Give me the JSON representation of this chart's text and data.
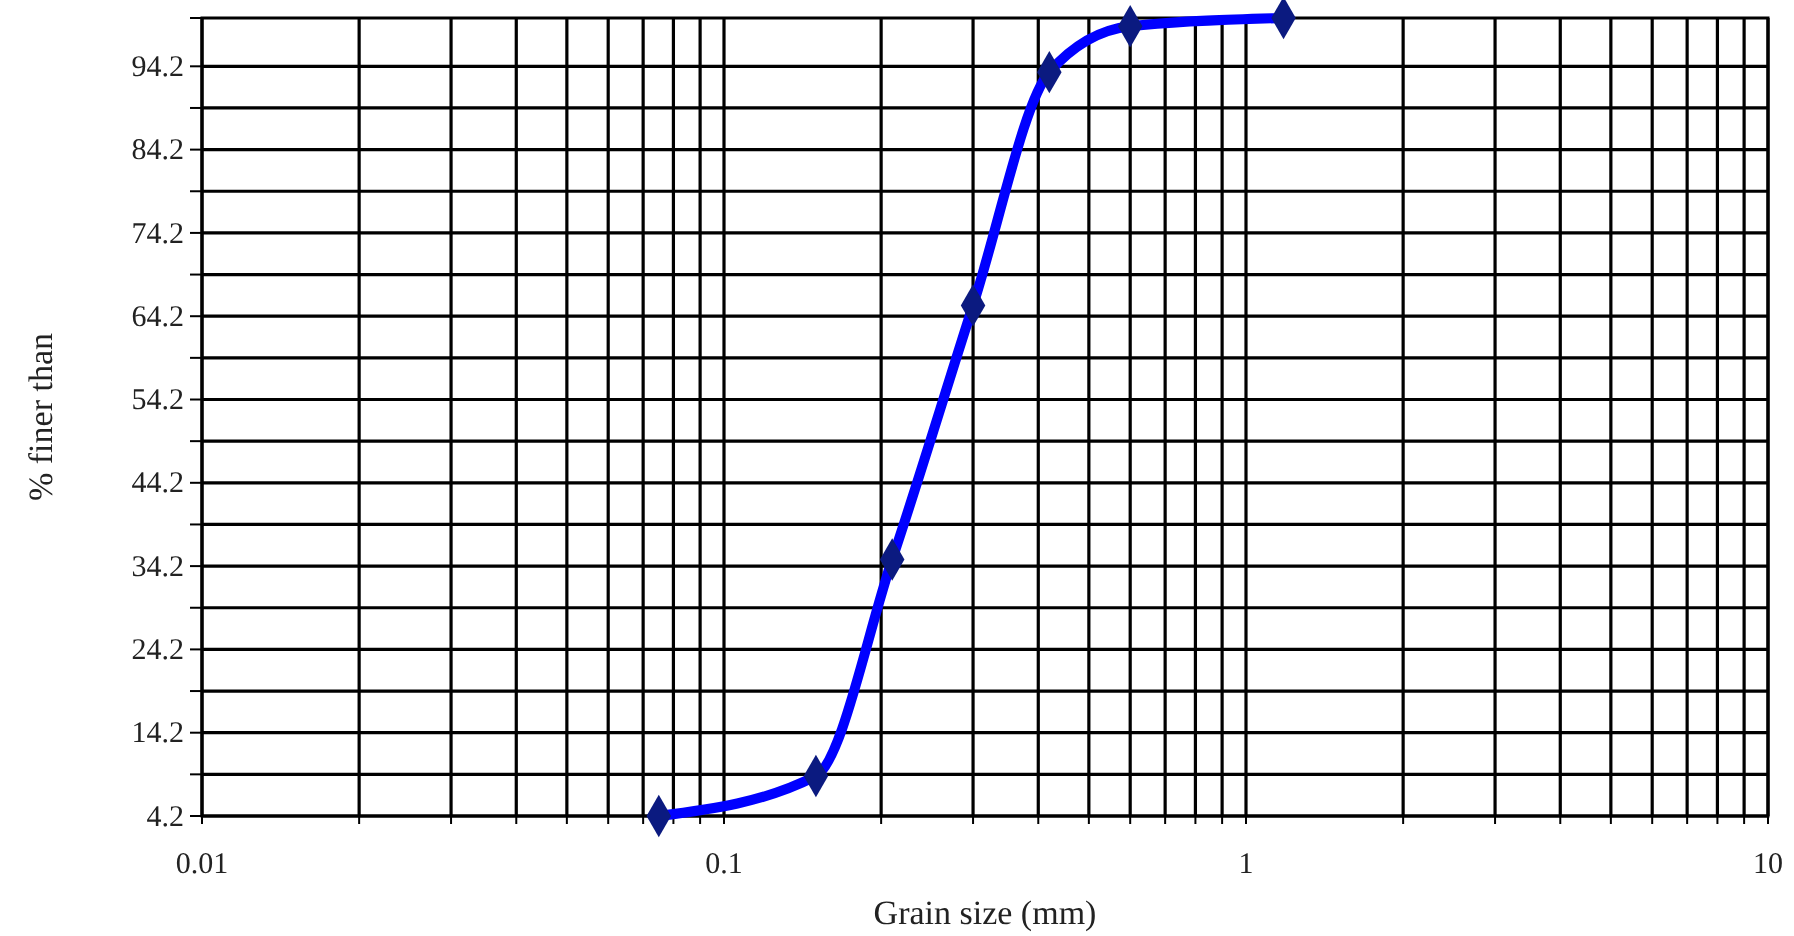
{
  "chart_data": {
    "type": "line",
    "xlabel": "Grain size (mm)",
    "ylabel": "% finer than",
    "log": "x",
    "grid": true,
    "marker": "diamond",
    "xlim": [
      0.01,
      10
    ],
    "ylim": [
      4.2,
      100
    ],
    "xticks": [
      0.01,
      {
        "value": 0.02,
        "label": null
      },
      {
        "value": 0.03,
        "label": null
      },
      {
        "value": 0.04,
        "label": null
      },
      {
        "value": 0.05,
        "label": null
      },
      {
        "value": 0.06,
        "label": null
      },
      {
        "value": 0.07,
        "label": null
      },
      {
        "value": 0.08,
        "label": null
      },
      {
        "value": 0.09,
        "label": null
      },
      0.1,
      {
        "value": 0.2,
        "label": null
      },
      {
        "value": 0.3,
        "label": null
      },
      {
        "value": 0.4,
        "label": null
      },
      {
        "value": 0.5,
        "label": null
      },
      {
        "value": 0.6,
        "label": null
      },
      {
        "value": 0.7,
        "label": null
      },
      {
        "value": 0.8,
        "label": null
      },
      {
        "value": 0.9,
        "label": null
      },
      1,
      {
        "value": 2,
        "label": null
      },
      {
        "value": 3,
        "label": null
      },
      {
        "value": 4,
        "label": null
      },
      {
        "value": 5,
        "label": null
      },
      {
        "value": 6,
        "label": null
      },
      {
        "value": 7,
        "label": null
      },
      {
        "value": 8,
        "label": null
      },
      {
        "value": 9,
        "label": null
      },
      10
    ],
    "yticks": [
      4.2,
      {
        "value": 9.2,
        "label": null
      },
      14.2,
      {
        "value": 19.2,
        "label": null
      },
      24.2,
      {
        "value": 29.2,
        "label": null
      },
      34.2,
      {
        "value": 39.2,
        "label": null
      },
      44.2,
      {
        "value": 49.2,
        "label": null
      },
      54.2,
      {
        "value": 59.2,
        "label": null
      },
      64.2,
      {
        "value": 69.2,
        "label": null
      },
      74.2,
      {
        "value": 79.2,
        "label": null
      },
      84.2,
      {
        "value": 89.2,
        "label": null
      },
      94.2
    ],
    "x": [
      0.075,
      0.15,
      0.21,
      0.3,
      0.42,
      0.6,
      1.18
    ],
    "series": [
      {
        "color": "#0000ff",
        "values": [
          4.2,
          9,
          35,
          65.5,
          93.5,
          99,
          100
        ]
      }
    ]
  }
}
